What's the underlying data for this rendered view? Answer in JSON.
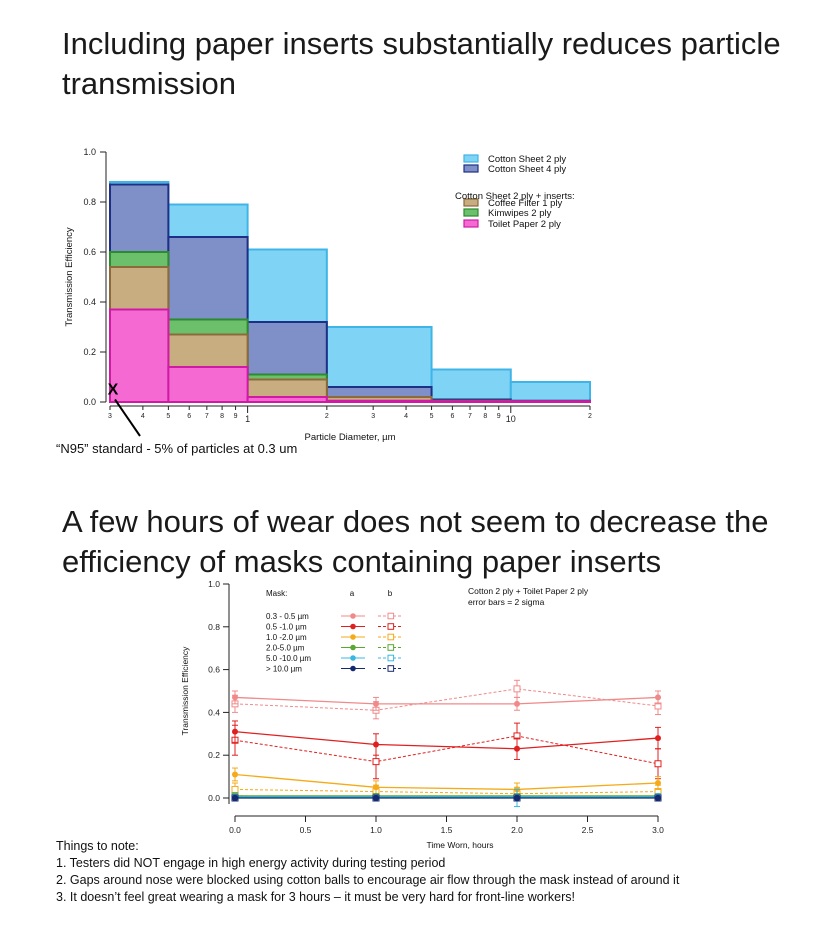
{
  "slide": {
    "title1": "Including paper inserts substantially reduces particle transmission",
    "title2": "A few hours of wear does not seem to decrease the efficiency of masks containing paper inserts",
    "n95_note": "“N95” standard - 5% of particles at 0.3 um",
    "n95_marker": "X",
    "notes_heading": "Things to note:",
    "notes": [
      "1.  Testers did NOT engage in high energy activity during testing period",
      "2.  Gaps around nose were blocked using cotton balls to encourage air flow through the mask instead of around it",
      "3.  It doesn’t feel great wearing a mask for 3 hours – it must be very hard for front-line workers!"
    ]
  },
  "colors": {
    "cotton2": "#7fd3f5",
    "cotton2_edge": "#3fb4e6",
    "cotton4": "#7f8fc8",
    "cotton4_edge": "#1e2f86",
    "coffee": "#c8ad80",
    "coffee_edge": "#8c6a3a",
    "kimwipes": "#6cc06c",
    "kimwipes_edge": "#2e8a2e",
    "toilet": "#f46ad2",
    "toilet_edge": "#d01aa6"
  },
  "chart_data": [
    {
      "type": "bar",
      "xscale": "log",
      "xlabel": "Particle Diameter, µm",
      "ylabel": "Transmission Efficiency",
      "ylim": [
        0.0,
        1.0
      ],
      "y_ticks": [
        "0.0",
        "0.2",
        "0.4",
        "0.6",
        "0.8",
        "1.0"
      ],
      "x_tick_labels": [
        "3",
        "4",
        "5",
        "6",
        "7",
        "8",
        "9",
        "1",
        "2",
        "3",
        "4",
        "5",
        "6",
        "7",
        "8",
        "9",
        "10",
        "2"
      ],
      "bin_edges": [
        0.3,
        0.5,
        1.0,
        2.0,
        5.0,
        10.0,
        20.0
      ],
      "legend": {
        "group_title": "Cotton Sheet 2 ply + inserts:",
        "placement": "top-right"
      },
      "series": [
        {
          "name": "Cotton Sheet 2 ply",
          "values": [
            0.88,
            0.79,
            0.61,
            0.3,
            0.13,
            0.08
          ]
        },
        {
          "name": "Cotton Sheet 4 ply",
          "values": [
            0.87,
            0.66,
            0.32,
            0.06,
            0.01,
            0.005
          ]
        },
        {
          "name": "Coffee Filter 1 ply",
          "values": [
            0.54,
            0.27,
            0.09,
            0.02,
            0.005,
            0.003
          ]
        },
        {
          "name": "Kimwipes 2 ply",
          "values": [
            0.6,
            0.33,
            0.11,
            0.01,
            0.003,
            0.002
          ]
        },
        {
          "name": "Toilet Paper 2 ply",
          "values": [
            0.37,
            0.14,
            0.02,
            0.005,
            0.003,
            0.003
          ]
        }
      ],
      "annotations": [
        {
          "text": "X",
          "x": 0.3,
          "y": 0.05
        }
      ]
    },
    {
      "type": "line",
      "xlabel": "Time Worn, hours",
      "ylabel": "Transmission Efficiency",
      "xlim": [
        0.0,
        3.0
      ],
      "ylim": [
        0.0,
        1.0
      ],
      "x_ticks": [
        "0.0",
        "0.5",
        "1.0",
        "1.5",
        "2.0",
        "2.5",
        "3.0"
      ],
      "y_ticks": [
        "0.0",
        "0.2",
        "0.4",
        "0.6",
        "0.8",
        "1.0"
      ],
      "x": [
        0,
        1,
        2,
        3
      ],
      "legend_header": "Mask:",
      "legend_columns": [
        "a",
        "b"
      ],
      "info_lines": [
        "Cotton 2 ply + Toilet Paper 2 ply",
        "error bars = 2 sigma"
      ],
      "series": [
        {
          "name": "0.3 - 0.5 µm",
          "color": "#f08a8a",
          "a": [
            0.47,
            0.44,
            0.44,
            0.47
          ],
          "b": [
            0.44,
            0.41,
            0.51,
            0.43
          ],
          "err_a": [
            0.03,
            0.03,
            0.03,
            0.03
          ],
          "err_b": [
            0.04,
            0.04,
            0.04,
            0.04
          ]
        },
        {
          "name": "0.5 -1.0 µm",
          "color": "#e02020",
          "a": [
            0.31,
            0.25,
            0.23,
            0.28
          ],
          "b": [
            0.27,
            0.17,
            0.29,
            0.16
          ],
          "err_a": [
            0.05,
            0.05,
            0.05,
            0.05
          ],
          "err_b": [
            0.07,
            0.08,
            0.06,
            0.07
          ]
        },
        {
          "name": "1.0 -2.0 µm",
          "color": "#f5aa18",
          "a": [
            0.11,
            0.05,
            0.04,
            0.07
          ],
          "b": [
            0.04,
            0.03,
            0.02,
            0.03
          ],
          "err_a": [
            0.03,
            0.03,
            0.03,
            0.03
          ],
          "err_b": [
            0.03,
            0.03,
            0.03,
            0.03
          ]
        },
        {
          "name": "2.0-5.0 µm",
          "color": "#5aa832",
          "a": [
            0.01,
            0.01,
            0.01,
            0.01
          ],
          "b": [
            0.01,
            0.005,
            0.005,
            0.005
          ],
          "err_a": [
            0.01,
            0.01,
            0.01,
            0.01
          ],
          "err_b": [
            0.01,
            0.01,
            0.01,
            0.01
          ]
        },
        {
          "name": "5.0 -10.0 µm",
          "color": "#38b8e0",
          "a": [
            0.005,
            0.005,
            0.005,
            0.005
          ],
          "b": [
            0.005,
            0.0,
            0.0,
            0.005
          ],
          "err_a": [
            0.01,
            0.01,
            0.01,
            0.01
          ],
          "err_b": [
            0.01,
            0.01,
            0.04,
            0.01
          ]
        },
        {
          "name": "> 10.0 µm",
          "color": "#142a6e",
          "a": [
            0.0,
            0.0,
            0.0,
            0.0
          ],
          "b": [
            0.0,
            0.0,
            0.0,
            0.0
          ],
          "err_a": [
            0.005,
            0.005,
            0.005,
            0.005
          ],
          "err_b": [
            0.005,
            0.005,
            0.005,
            0.005
          ]
        }
      ]
    }
  ]
}
